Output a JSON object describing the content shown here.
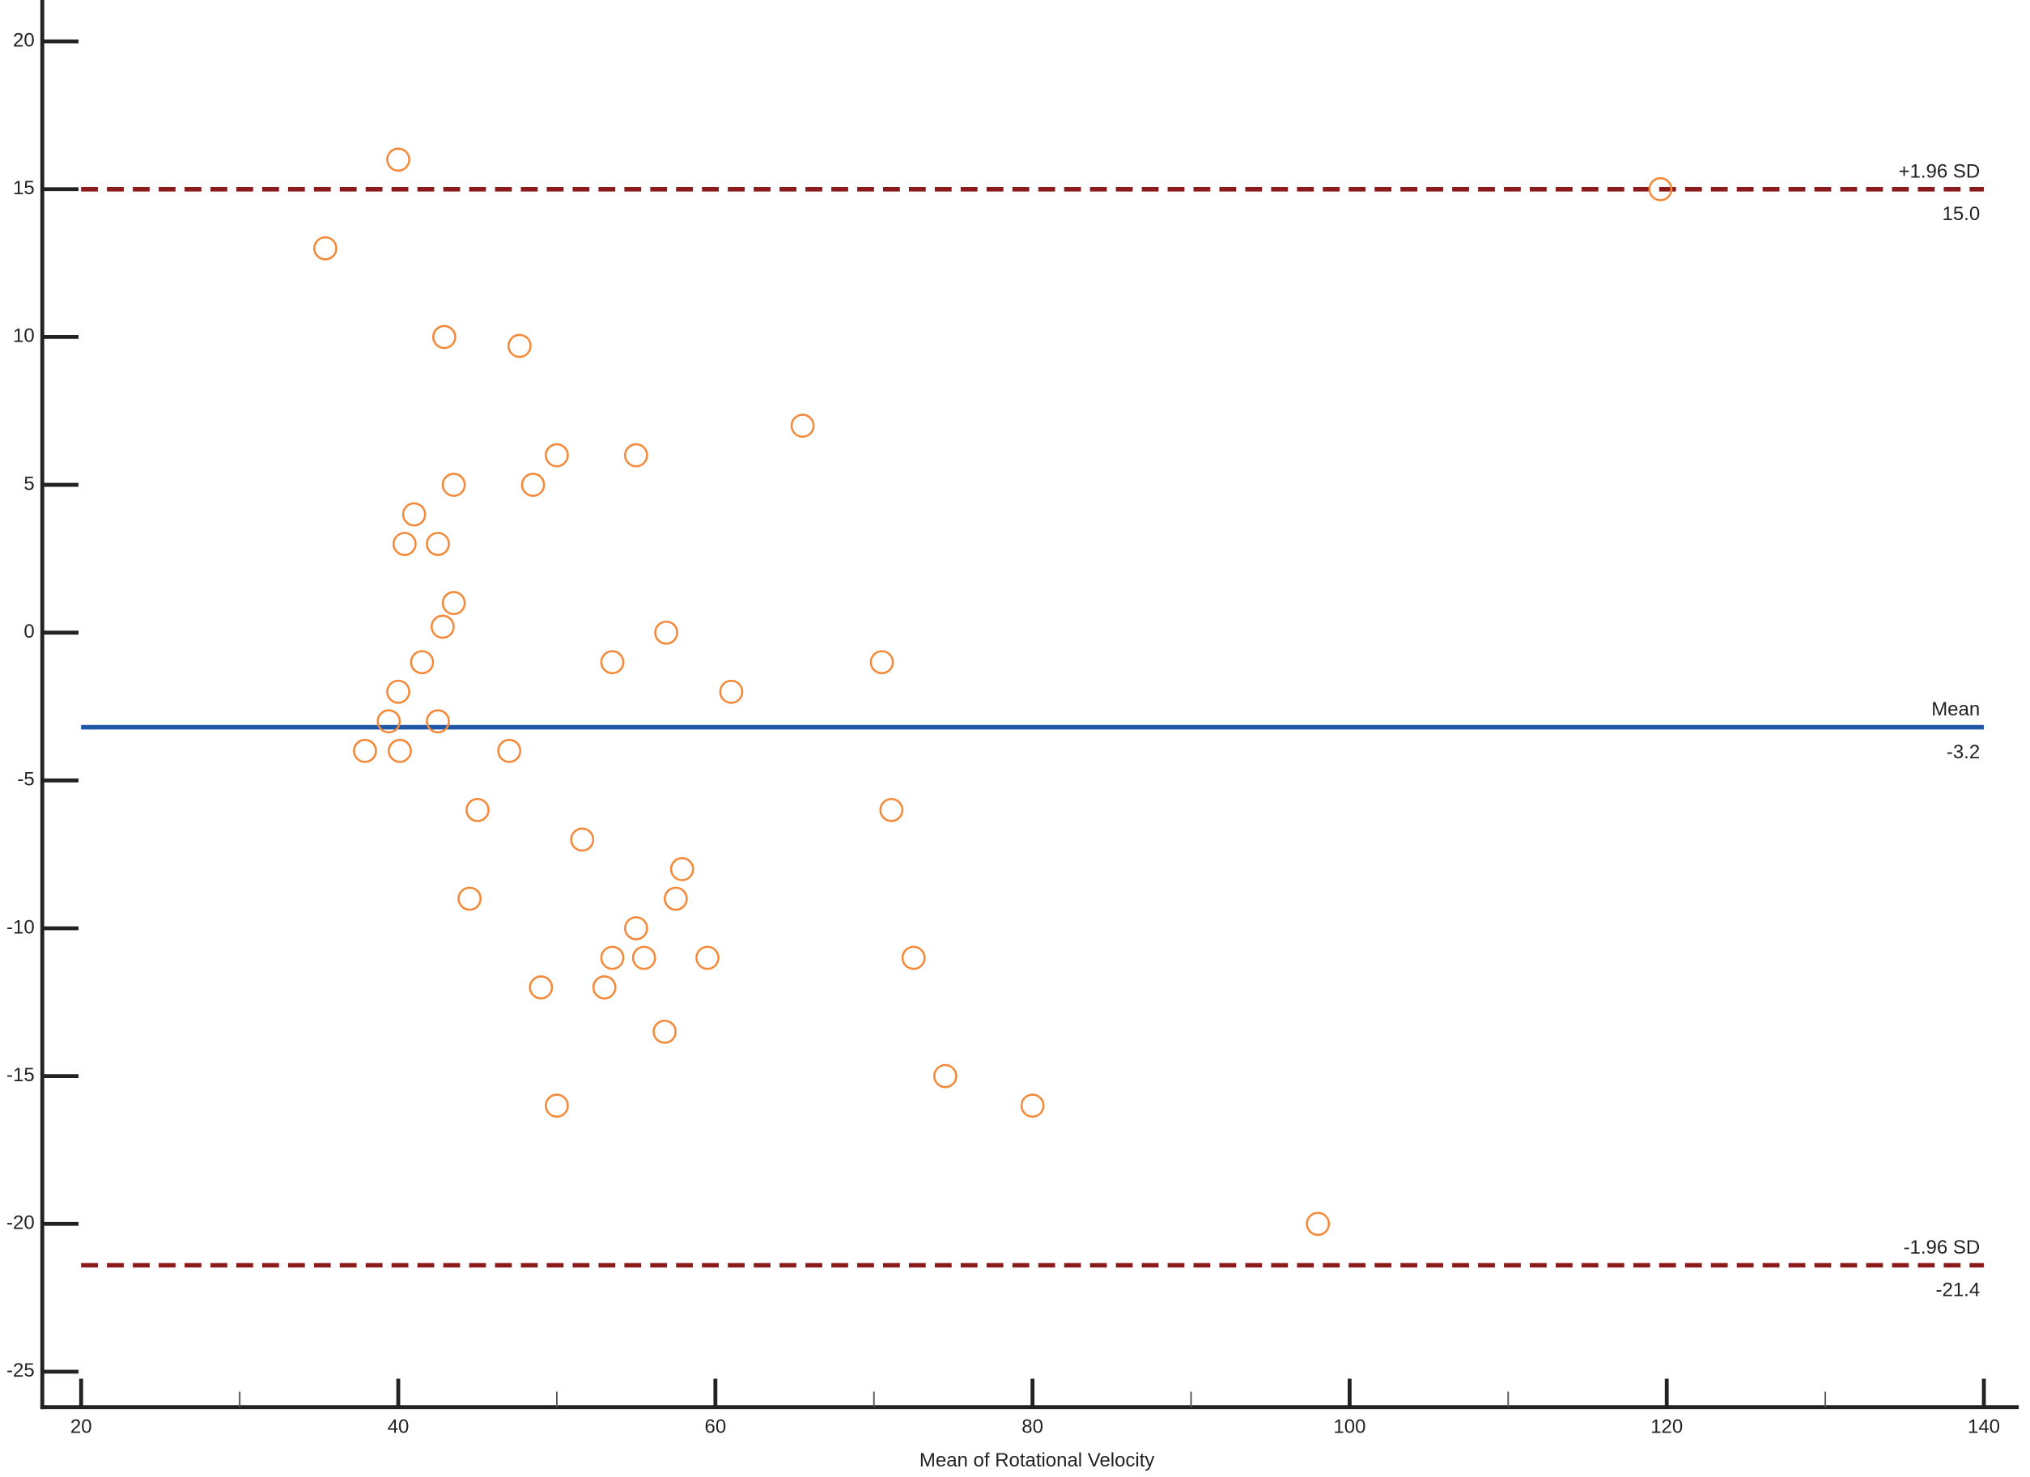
{
  "chart_data": {
    "type": "scatter",
    "x_label": "Mean of Rotational Velocity",
    "xlim": [
      17.55,
      142.2
    ],
    "ylim": [
      -26.2,
      21.4
    ],
    "xticks": [
      20,
      40,
      60,
      80,
      100,
      120,
      140
    ],
    "xminorticks": [
      30,
      50,
      70,
      90,
      110,
      130
    ],
    "yticks": [
      -25,
      -20,
      -15,
      -10,
      -5,
      0,
      5,
      10,
      15,
      20
    ],
    "grid": false,
    "series": [
      {
        "color": "#f4893a",
        "x": [
          40,
          35.4,
          119.6,
          42.9,
          47.65,
          65.5,
          50,
          55,
          43.5,
          48.5,
          41,
          40.4,
          42.5,
          43.5,
          42.8,
          56.9,
          41.5,
          53.5,
          70.5,
          40,
          61,
          39.4,
          42.5,
          37.9,
          40.1,
          47,
          45,
          71.1,
          51.6,
          57.9,
          44.5,
          57.5,
          55,
          53.5,
          55.5,
          59.5,
          72.5,
          49,
          53,
          56.8,
          74.5,
          50,
          80,
          98
        ],
        "values": [
          16,
          13,
          15,
          10,
          9.7,
          7,
          6,
          6,
          5,
          5,
          4,
          3,
          3,
          1,
          0.2,
          0,
          -1,
          -1,
          -1,
          -2,
          -2,
          -3,
          -3,
          -4,
          -4,
          -4,
          -6,
          -6,
          -7,
          -8,
          -9,
          -9,
          -10,
          -11,
          -11,
          -11,
          -11,
          -12,
          -12,
          -13.5,
          -15,
          -16,
          -16,
          -20
        ]
      }
    ],
    "reference_lines": [
      {
        "label": "+1.96 SD",
        "value": 15.0,
        "value_label": "15.0",
        "color": "#8b1a1a",
        "style": "dashed"
      },
      {
        "label": "Mean",
        "value": -3.2,
        "value_label": "-3.2",
        "color": "#1f56a8",
        "style": "solid"
      },
      {
        "label": "-1.96 SD",
        "value": -21.4,
        "value_label": "-21.4",
        "color": "#8b1a1a",
        "style": "dashed"
      }
    ]
  }
}
